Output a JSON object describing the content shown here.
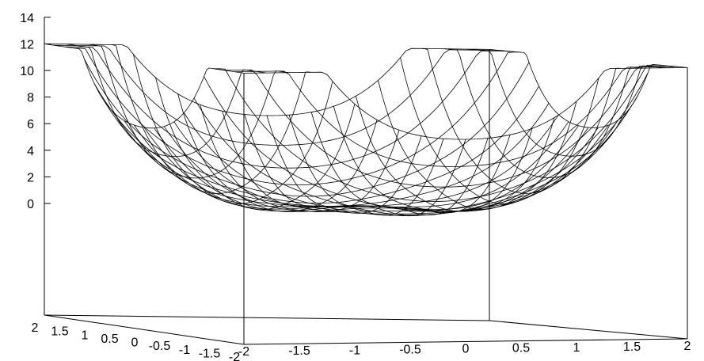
{
  "chart_data": {
    "type": "surface3d",
    "title": "",
    "xlabel": "",
    "ylabel": "",
    "zlabel": "",
    "x_range": [
      -2,
      2
    ],
    "y_range": [
      -2,
      2
    ],
    "z_range": [
      0,
      14
    ],
    "z_ticks": [
      "14",
      "12",
      "10",
      "8",
      "6",
      "4",
      "2",
      "0"
    ],
    "x_ticks": [
      "-2",
      "-1.5",
      "-1",
      "-0.5",
      "0",
      "0.5",
      "1",
      "1.5",
      "2"
    ],
    "y_ticks": [
      "-2",
      "-1.5",
      "-1",
      "-0.5",
      "0",
      "0.5",
      "1",
      "1.5",
      "2"
    ],
    "y_tick_labels_left_to_right": [
      "2",
      "1.5",
      "1",
      "0.5",
      "0",
      "-0.5",
      "-1",
      "-1.5",
      "-2"
    ],
    "grid_resolution": 20,
    "surface": "wireframe of a bowl-shaped surface: z = (x^2 + y^2)^2 / 2.7 + 0.3*cos(3x)*cos(3y) + 0.6, clipped to [0,12]",
    "corner_z": 12,
    "min_z": 0.6
  }
}
